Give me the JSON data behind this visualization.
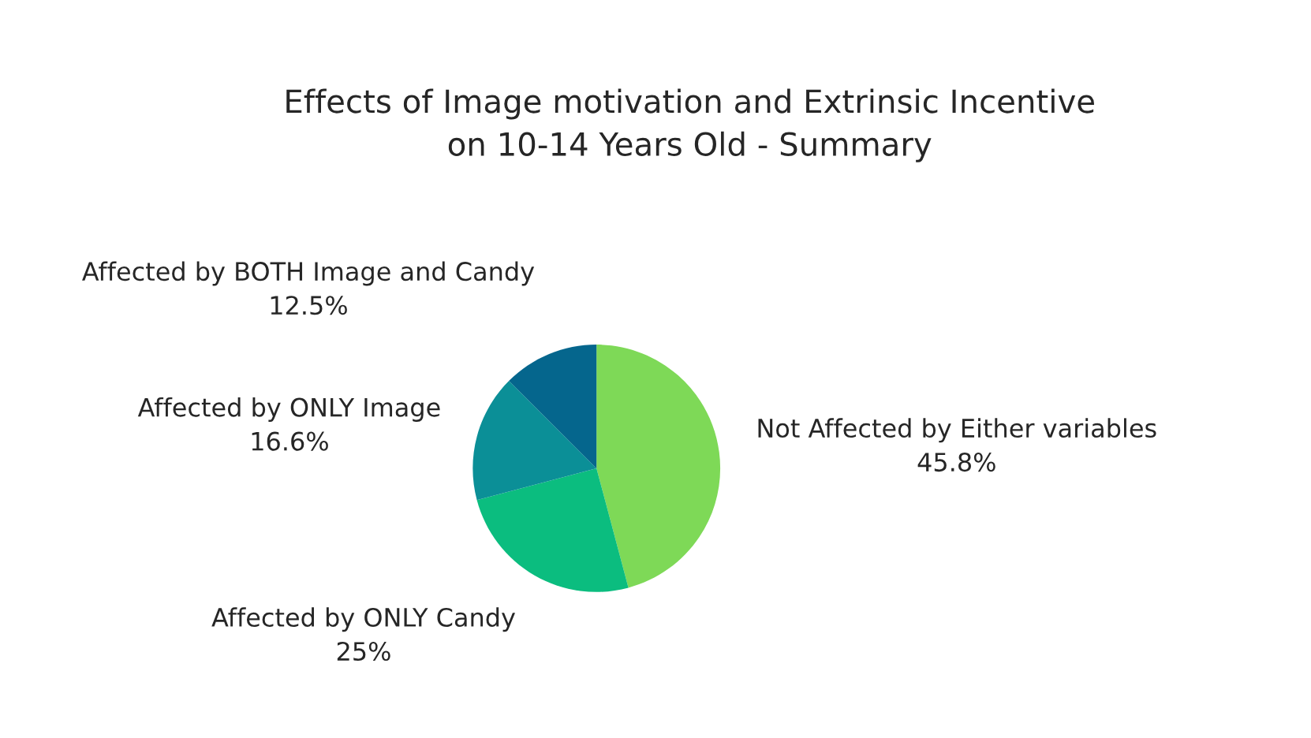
{
  "chart_data": {
    "type": "pie",
    "title": "Effects of Image motivation and Extrinsic Incentive\non 10-14 Years Old - Summary",
    "categories": [
      "Not Affected by Either variables",
      "Affected by ONLY Candy",
      "Affected by ONLY Image",
      "Affected by BOTH Image and Candy"
    ],
    "values": [
      45.8,
      25,
      16.6,
      12.5
    ],
    "value_labels": [
      "45.8%",
      "25%",
      "16.6%",
      "12.5%"
    ],
    "colors": [
      "#7ed957",
      "#0bbd7f",
      "#0b8f97",
      "#05668d"
    ],
    "legend": false
  }
}
